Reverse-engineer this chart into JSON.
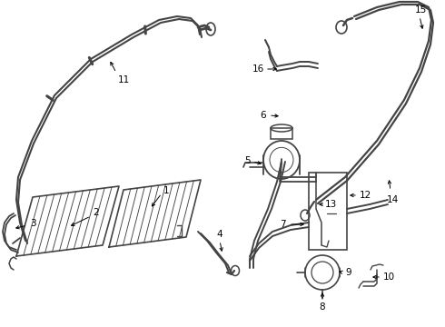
{
  "bg_color": "#ffffff",
  "line_color": "#444444",
  "label_color": "#000000",
  "lw_hose": 1.4,
  "lw_thin": 0.9,
  "label_fs": 7.5
}
